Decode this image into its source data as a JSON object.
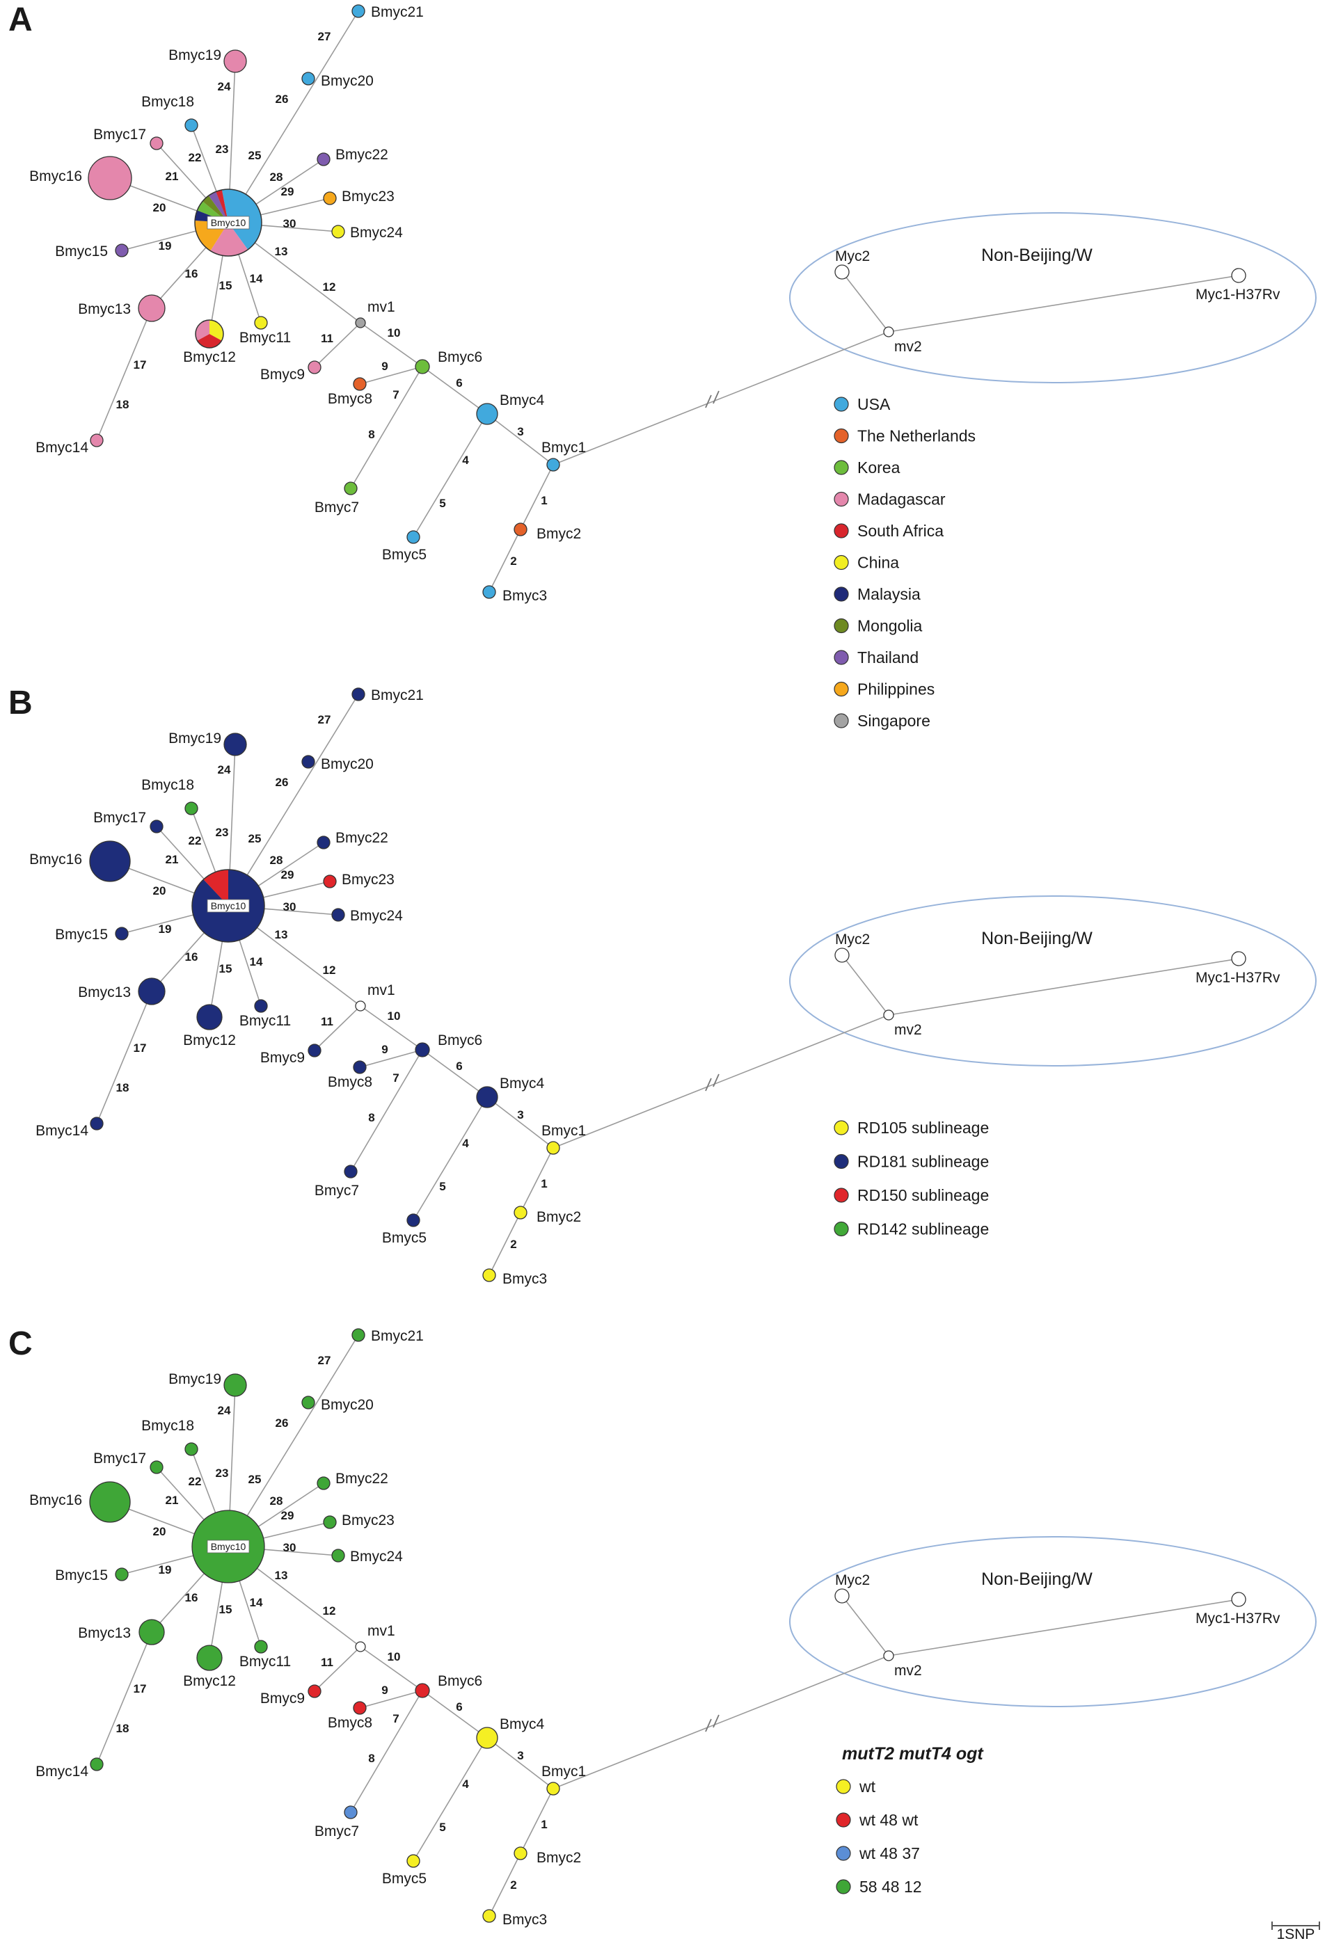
{
  "panels": [
    {
      "letter": "A",
      "network_variant": "A"
    },
    {
      "letter": "B",
      "network_variant": "B"
    },
    {
      "letter": "C",
      "network_variant": "C"
    }
  ],
  "network": {
    "center_node": "Bmyc10",
    "median_vectors": [
      "mv1",
      "mv2"
    ],
    "nodes": [
      "Bmyc1",
      "Bmyc2",
      "Bmyc3",
      "Bmyc4",
      "Bmyc5",
      "Bmyc6",
      "Bmyc7",
      "Bmyc8",
      "Bmyc9",
      "Bmyc10",
      "Bmyc11",
      "Bmyc12",
      "Bmyc13",
      "Bmyc14",
      "Bmyc15",
      "Bmyc16",
      "Bmyc17",
      "Bmyc18",
      "Bmyc19",
      "Bmyc20",
      "Bmyc21",
      "Bmyc22",
      "Bmyc23",
      "Bmyc24",
      "mv1",
      "mv2",
      "Myc1-H37Rv",
      "Myc2"
    ],
    "edges": [
      {
        "from": "Bmyc1",
        "to": "Bmyc2",
        "label": "1"
      },
      {
        "from": "Bmyc2",
        "to": "Bmyc3",
        "label": "2"
      },
      {
        "from": "Bmyc1",
        "to": "Bmyc4",
        "label": "3"
      },
      {
        "from": "Bmyc4",
        "to": "Bmyc5",
        "label": "4"
      },
      {
        "from": "Bmyc4",
        "to": "Bmyc5",
        "label": "5"
      },
      {
        "from": "Bmyc4",
        "to": "Bmyc6",
        "label": "6"
      },
      {
        "from": "Bmyc6",
        "to": "Bmyc7",
        "label": "7"
      },
      {
        "from": "Bmyc6",
        "to": "Bmyc7",
        "label": "8"
      },
      {
        "from": "Bmyc6",
        "to": "Bmyc8",
        "label": "9"
      },
      {
        "from": "Bmyc6",
        "to": "mv1",
        "label": "10"
      },
      {
        "from": "mv1",
        "to": "Bmyc9",
        "label": "11"
      },
      {
        "from": "mv1",
        "to": "Bmyc10",
        "label": "12"
      },
      {
        "from": "mv1",
        "to": "Bmyc10",
        "label": "13"
      },
      {
        "from": "Bmyc10",
        "to": "Bmyc11",
        "label": "14"
      },
      {
        "from": "Bmyc10",
        "to": "Bmyc12",
        "label": "15"
      },
      {
        "from": "Bmyc10",
        "to": "Bmyc13",
        "label": "16"
      },
      {
        "from": "Bmyc13",
        "to": "Bmyc14",
        "label": "17"
      },
      {
        "from": "Bmyc13",
        "to": "Bmyc14",
        "label": "18"
      },
      {
        "from": "Bmyc10",
        "to": "Bmyc15",
        "label": "19"
      },
      {
        "from": "Bmyc10",
        "to": "Bmyc16",
        "label": "20"
      },
      {
        "from": "Bmyc10",
        "to": "Bmyc17",
        "label": "21"
      },
      {
        "from": "Bmyc10",
        "to": "Bmyc18",
        "label": "22"
      },
      {
        "from": "Bmyc10",
        "to": "Bmyc19",
        "label": "23"
      },
      {
        "from": "Bmyc10",
        "to": "Bmyc19",
        "label": "24"
      },
      {
        "from": "Bmyc10",
        "to": "Bmyc20",
        "label": "25"
      },
      {
        "from": "Bmyc10",
        "to": "Bmyc20",
        "label": "26"
      },
      {
        "from": "Bmyc20",
        "to": "Bmyc21",
        "label": "27"
      },
      {
        "from": "Bmyc10",
        "to": "Bmyc22",
        "label": "28"
      },
      {
        "from": "Bmyc10",
        "to": "Bmyc23",
        "label": "29"
      },
      {
        "from": "Bmyc10",
        "to": "Bmyc24",
        "label": "30"
      },
      {
        "from": "Bmyc1",
        "to": "mv2",
        "label": ""
      },
      {
        "from": "mv2",
        "to": "Myc2",
        "label": ""
      },
      {
        "from": "mv2",
        "to": "Myc1-H37Rv",
        "label": ""
      }
    ],
    "non_beijing_group_label": "Non-Beijing/W"
  },
  "colors": {
    "USA": "#41a9dd",
    "The Netherlands": "#e4622a",
    "Korea": "#6dbd3c",
    "Madagascar": "#e487ac",
    "South Africa": "#d8262d",
    "China": "#f2ee22",
    "Malaysia": "#1f2a78",
    "Mongolia": "#6e8a22",
    "Thailand": "#7f5cae",
    "Philippines": "#f6a81c",
    "Singapore": "#a3a3a3",
    "RD105": "#f5ef23",
    "RD181": "#1e2d7a",
    "RD150": "#e0262b",
    "RD142": "#41a938",
    "wt": "#f5ef23",
    "wt 48 wt": "#e0262b",
    "wt 48 37": "#5b8ed6",
    "58 48 12": "#3fa637",
    "unknown_node": "#ffffff",
    "edge": "#9a9a9a",
    "group_ellipse": "#97b3da"
  },
  "legends": {
    "A": {
      "title": "",
      "items": [
        {
          "label": "USA",
          "color_key": "USA"
        },
        {
          "label": "The Netherlands",
          "color_key": "The Netherlands"
        },
        {
          "label": "Korea",
          "color_key": "Korea"
        },
        {
          "label": "Madagascar",
          "color_key": "Madagascar"
        },
        {
          "label": "South Africa",
          "color_key": "South Africa"
        },
        {
          "label": "China",
          "color_key": "China"
        },
        {
          "label": "Malaysia",
          "color_key": "Malaysia"
        },
        {
          "label": "Mongolia",
          "color_key": "Mongolia"
        },
        {
          "label": "Thailand",
          "color_key": "Thailand"
        },
        {
          "label": "Philippines",
          "color_key": "Philippines"
        },
        {
          "label": "Singapore",
          "color_key": "Singapore"
        }
      ]
    },
    "B": {
      "title": "",
      "items": [
        {
          "label": "RD105 sublineage",
          "color_key": "RD105"
        },
        {
          "label": "RD181 sublineage",
          "color_key": "RD181"
        },
        {
          "label": "RD150 sublineage",
          "color_key": "RD150"
        },
        {
          "label": "RD142 sublineage",
          "color_key": "RD142"
        }
      ]
    },
    "C": {
      "title": "mutT2 mutT4 ogt",
      "items": [
        {
          "label": "wt",
          "color_key": "wt"
        },
        {
          "label": "wt 48 wt",
          "color_key": "wt 48 wt"
        },
        {
          "label": "wt 48 37",
          "color_key": "wt 48 37"
        },
        {
          "label": "58 48 12",
          "color_key": "58 48 12"
        }
      ]
    }
  },
  "node_colors": {
    "A": {
      "Bmyc1": "USA",
      "Bmyc2": "The Netherlands",
      "Bmyc3": "USA",
      "Bmyc4": "USA",
      "Bmyc5": "USA",
      "Bmyc6": "Korea",
      "Bmyc7": "Korea",
      "Bmyc8": "The Netherlands",
      "Bmyc9": "Madagascar",
      "Bmyc11": "China",
      "Bmyc13": "Madagascar",
      "Bmyc14": "Madagascar",
      "Bmyc15": "Thailand",
      "Bmyc16": "Madagascar",
      "Bmyc17": "Madagascar",
      "Bmyc18": "USA",
      "Bmyc19": "Madagascar",
      "Bmyc20": "USA",
      "Bmyc21": "USA",
      "Bmyc22": "Thailand",
      "Bmyc23": "Philippines",
      "Bmyc24": "China",
      "mv1": "Singapore",
      "mv2": "unknown_node",
      "Myc1-H37Rv": "unknown_node",
      "Myc2": "unknown_node"
    },
    "B": {
      "Bmyc1": "RD105",
      "Bmyc2": "RD105",
      "Bmyc3": "RD105",
      "Bmyc4": "RD181",
      "Bmyc5": "RD181",
      "Bmyc6": "RD181",
      "Bmyc7": "RD181",
      "Bmyc8": "RD181",
      "Bmyc9": "RD181",
      "Bmyc11": "RD181",
      "Bmyc12": "RD181",
      "Bmyc13": "RD181",
      "Bmyc14": "RD181",
      "Bmyc15": "RD181",
      "Bmyc16": "RD181",
      "Bmyc17": "RD181",
      "Bmyc18": "RD142",
      "Bmyc19": "RD181",
      "Bmyc20": "RD181",
      "Bmyc21": "RD181",
      "Bmyc22": "RD181",
      "Bmyc23": "RD150",
      "Bmyc24": "RD181",
      "mv1": "unknown_node",
      "mv2": "unknown_node",
      "Myc1-H37Rv": "unknown_node",
      "Myc2": "unknown_node"
    },
    "C": {
      "Bmyc1": "wt",
      "Bmyc2": "wt",
      "Bmyc3": "wt",
      "Bmyc4": "wt",
      "Bmyc5": "wt",
      "Bmyc6": "wt 48 wt",
      "Bmyc7": "wt 48 37",
      "Bmyc8": "wt 48 wt",
      "Bmyc9": "wt 48 wt",
      "Bmyc10": "58 48 12",
      "Bmyc11": "58 48 12",
      "Bmyc12": "58 48 12",
      "Bmyc13": "58 48 12",
      "Bmyc14": "58 48 12",
      "Bmyc15": "58 48 12",
      "Bmyc16": "58 48 12",
      "Bmyc17": "58 48 12",
      "Bmyc18": "58 48 12",
      "Bmyc19": "58 48 12",
      "Bmyc20": "58 48 12",
      "Bmyc21": "58 48 12",
      "Bmyc22": "58 48 12",
      "Bmyc23": "58 48 12",
      "Bmyc24": "58 48 12",
      "mv1": "unknown_node",
      "mv2": "unknown_node",
      "Myc1-H37Rv": "unknown_node",
      "Myc2": "unknown_node"
    }
  },
  "pie_nodes": {
    "A": {
      "Bmyc10": [
        {
          "key": "USA",
          "fraction": 0.4
        },
        {
          "key": "Madagascar",
          "fraction": 0.19
        },
        {
          "key": "Philippines",
          "fraction": 0.17
        },
        {
          "key": "Malaysia",
          "fraction": 0.05
        },
        {
          "key": "Korea",
          "fraction": 0.05
        },
        {
          "key": "Mongolia",
          "fraction": 0.04
        },
        {
          "key": "Thailand",
          "fraction": 0.04
        },
        {
          "key": "South Africa",
          "fraction": 0.03
        },
        {
          "key": "USA",
          "fraction": 0.03
        }
      ],
      "Bmyc12": [
        {
          "key": "China",
          "fraction": 0.33
        },
        {
          "key": "South Africa",
          "fraction": 0.34
        },
        {
          "key": "Madagascar",
          "fraction": 0.33
        }
      ]
    },
    "B": {
      "Bmyc10": [
        {
          "key": "RD181",
          "fraction": 0.88
        },
        {
          "key": "RD150",
          "fraction": 0.12
        }
      ]
    },
    "C": {}
  },
  "scale_bar": {
    "label": "1SNP"
  }
}
